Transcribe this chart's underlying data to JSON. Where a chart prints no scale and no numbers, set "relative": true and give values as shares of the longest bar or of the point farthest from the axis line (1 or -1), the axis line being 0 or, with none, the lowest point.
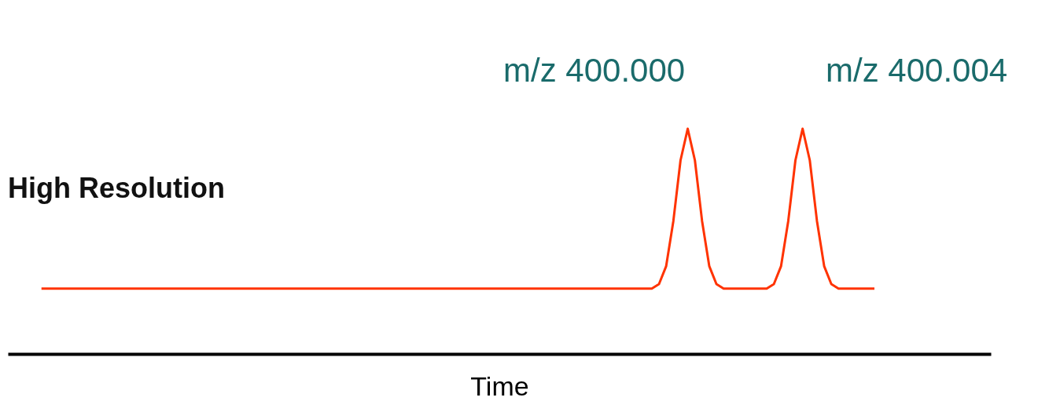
{
  "chart_data": {
    "type": "line",
    "relative": true,
    "xlabel": "Time",
    "tick_labels": false,
    "grid": false,
    "marker": "none",
    "line_style": "solid",
    "annotations": [
      "m/z 400.000",
      "m/z 400.004",
      "High Resolution"
    ],
    "categories": [
      null,
      null,
      null,
      null,
      null,
      null,
      null,
      null,
      null,
      null,
      null,
      null,
      null,
      null,
      null,
      null,
      null,
      null,
      null,
      null,
      null,
      null,
      null,
      null,
      null,
      null,
      null,
      null,
      null,
      null,
      null,
      null,
      null,
      null,
      null,
      null,
      null,
      null,
      null,
      null,
      null,
      null,
      null,
      null,
      null,
      null,
      null,
      null,
      null,
      null,
      null,
      null,
      null,
      null,
      null,
      null,
      null,
      null,
      null,
      null,
      null,
      null,
      null,
      null,
      null,
      null,
      null,
      null,
      null,
      null,
      null,
      null,
      null,
      null,
      null,
      null,
      null,
      null,
      null,
      null,
      null,
      null,
      null,
      null,
      null,
      null,
      null,
      null,
      null,
      null,
      null,
      null,
      null,
      null,
      null,
      null,
      null,
      null,
      null,
      null,
      null,
      null,
      null,
      null,
      null,
      null,
      null,
      null,
      null,
      null,
      null,
      null,
      null,
      null,
      null,
      null,
      null
    ],
    "series": [
      {
        "color": "#ff3300",
        "values": [
          0.29,
          0.29,
          0.29,
          0.29,
          0.29,
          0.29,
          0.29,
          0.29,
          0.29,
          0.29,
          0.29,
          0.29,
          0.29,
          0.29,
          0.29,
          0.29,
          0.29,
          0.29,
          0.29,
          0.29,
          0.29,
          0.29,
          0.29,
          0.29,
          0.29,
          0.29,
          0.29,
          0.29,
          0.29,
          0.29,
          0.29,
          0.29,
          0.29,
          0.29,
          0.29,
          0.29,
          0.29,
          0.29,
          0.29,
          0.29,
          0.29,
          0.29,
          0.29,
          0.29,
          0.29,
          0.29,
          0.29,
          0.29,
          0.29,
          0.29,
          0.29,
          0.29,
          0.29,
          0.29,
          0.29,
          0.29,
          0.29,
          0.29,
          0.29,
          0.29,
          0.29,
          0.29,
          0.29,
          0.29,
          0.29,
          0.29,
          0.29,
          0.29,
          0.29,
          0.29,
          0.29,
          0.29,
          0.29,
          0.29,
          0.29,
          0.29,
          0.29,
          0.29,
          0.29,
          0.29,
          0.29,
          0.29,
          0.29,
          0.29,
          0.29,
          0.29,
          0.31,
          0.39,
          0.59,
          0.86,
          1,
          0.86,
          0.59,
          0.39,
          0.31,
          0.29,
          0.29,
          0.29,
          0.29,
          0.29,
          0.29,
          0.29,
          0.31,
          0.39,
          0.59,
          0.86,
          1,
          0.86,
          0.59,
          0.39,
          0.31,
          0.29,
          0.29,
          0.29,
          0.29,
          0.29,
          0.29
        ]
      }
    ]
  }
}
